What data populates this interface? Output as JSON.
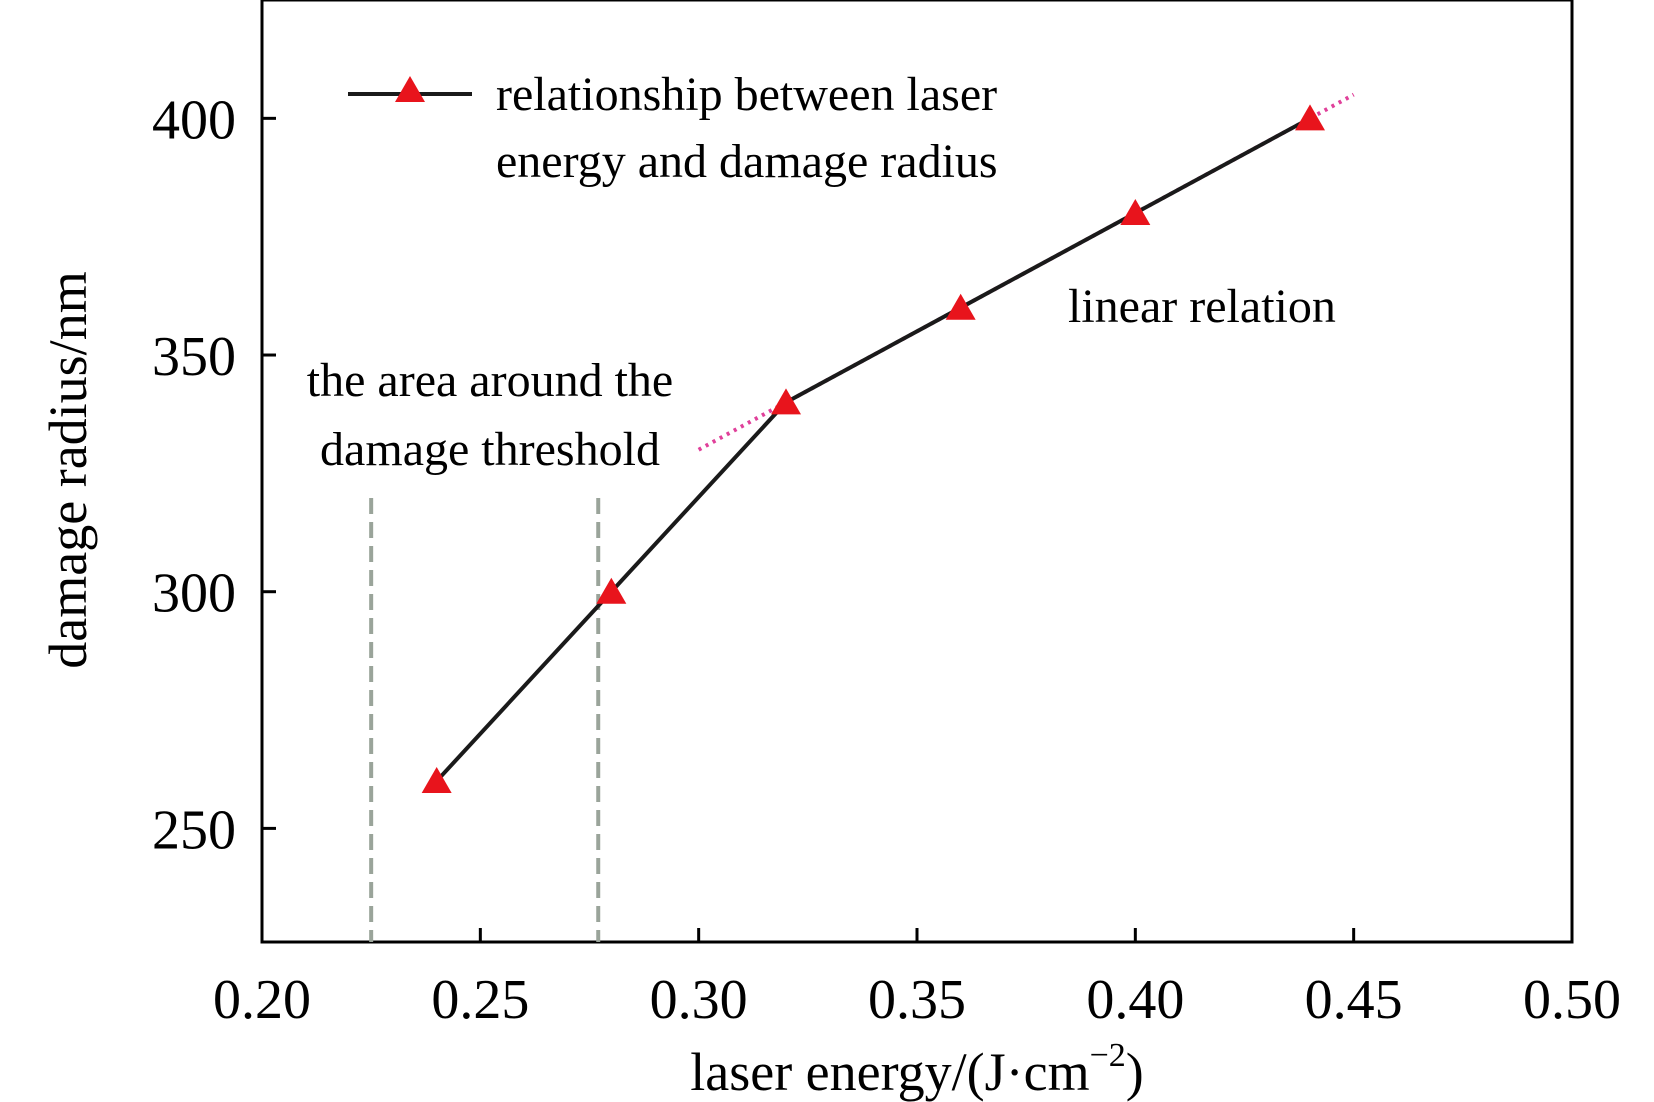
{
  "chart_data": {
    "type": "line",
    "xlabel": "laser energy/(J·cm",
    "xlabel_sup": "−2",
    "xlabel_end": ")",
    "ylabel": "damage radius/nm",
    "xlim": [
      0.2,
      0.5
    ],
    "ylim": [
      226,
      425
    ],
    "xticks": [
      "0.20",
      "0.25",
      "0.30",
      "0.35",
      "0.40",
      "0.45",
      "0.50"
    ],
    "yticks": [
      "250",
      "300",
      "350",
      "400"
    ],
    "xtick_values": [
      0.2,
      0.25,
      0.3,
      0.35,
      0.4,
      0.45,
      0.5
    ],
    "ytick_values": [
      250,
      300,
      350,
      400
    ],
    "series": [
      {
        "name": "relationship between laser energy and damage radius",
        "x": [
          0.24,
          0.28,
          0.32,
          0.36,
          0.4,
          0.44
        ],
        "y": [
          260,
          300,
          340,
          360,
          380,
          400
        ],
        "line_color": "#1a1a1a",
        "marker": "triangle",
        "marker_color": "#e8141c"
      }
    ],
    "fit_line": {
      "x": [
        0.3,
        0.45
      ],
      "y": [
        330,
        405
      ],
      "color": "#e0409a",
      "style": "dotted"
    },
    "threshold_lines": {
      "x": [
        0.225,
        0.277
      ],
      "color": "#9aa49a",
      "style": "dashed"
    },
    "legend": {
      "line1": "relationship between laser",
      "line2": "energy and damage radius",
      "placement": "top-left"
    },
    "annotations": {
      "threshold_line1": "the area around the",
      "threshold_line2": "damage threshold",
      "linear": "linear relation"
    },
    "grid": false
  }
}
